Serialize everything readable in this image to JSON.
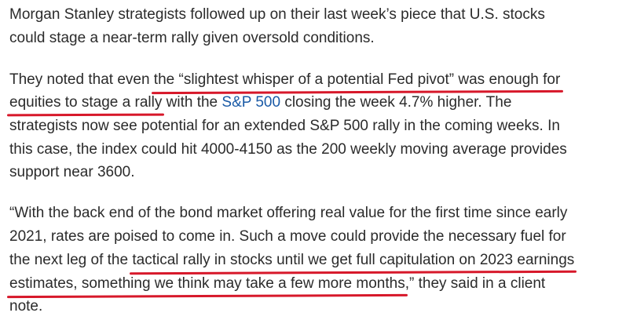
{
  "paragraphs": {
    "p1": {
      "l1": "Morgan Stanley strategists followed up on their last week’s piece that U.S. stocks",
      "l2": "could stage a near-term rally given oversold conditions."
    },
    "p2": {
      "l1_a": "They noted that even ",
      "l1_hl": "the “slightest whisper of a potential Fed pivot” was enough for",
      "l2_hl": "equities to stage a rally",
      "l2_b": " with the ",
      "l2_link": "S&P 500",
      "l2_c": " closing the week 4.7% higher. The",
      "l3": "strategists now see potential for an extended S&P 500 rally in the coming weeks. In",
      "l4": "this case, the index could hit 4000-4150 as the 200 weekly moving average provides",
      "l5": "support near 3600."
    },
    "p3": {
      "l1": "“With the back end of the bond market offering real value for the first time since early",
      "l2": "2021, rates are poised to come in. Such a move could provide the necessary fuel for",
      "l3_a": "the next leg of the ",
      "l3_hl": "tactical rally in stocks until we get full capitulation on 2023 earnings",
      "l4_hl": "estimates, something we think may take a few more months",
      "l4_b": ",” they said in a client",
      "l5": "note."
    }
  },
  "colors": {
    "text": "#2b2b2b",
    "link": "#1a5aa6",
    "highlight_underline": "#d7182a"
  }
}
